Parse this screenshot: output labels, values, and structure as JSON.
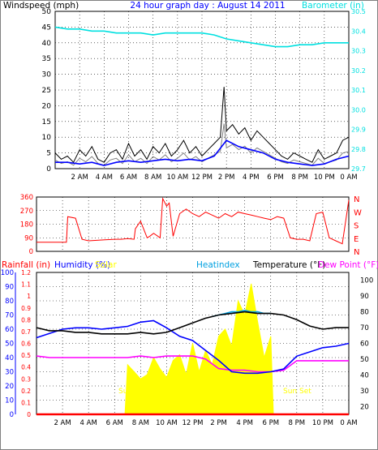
{
  "colors": {
    "frame": "#808080",
    "grid": "#000000",
    "wind": "#000000",
    "gust_gray": "#808080",
    "wind_avg": "#0000ff",
    "barometer": "#00e0e0",
    "direction": "#ff0000",
    "rain": "#ff0000",
    "humidity": "#0000ff",
    "solar": "#ffff00",
    "heatindex": "#00a0e0",
    "temperature": "#000000",
    "dewpoint": "#ff00ff",
    "dir_letters": "#ff0000"
  },
  "header": {
    "windspeed_label": "Windspeed (mph)",
    "title": "24 hour graph day : August 14 2011",
    "barometer_label": "Barometer (in)"
  },
  "footer": {
    "rainfall_label": "Rainfall (in)",
    "humidity_label": "Humidity (%)",
    "solar_label": "Solar",
    "heatindex_label": "Heatindex",
    "temperature_label": "Temperature (°F)",
    "dewpoint_label": "Dew Point (°F)",
    "sunrise_label": "Sun Rise",
    "sunset_label": "Sun Set"
  },
  "chart_data": [
    {
      "type": "line",
      "title": "24 hour graph day : August 14 2011",
      "x_tick_labels": [
        "2 AM",
        "4 AM",
        "6 AM",
        "8 AM",
        "10 AM",
        "12 PM",
        "2 PM",
        "4 PM",
        "6 PM",
        "8 PM",
        "10 PM",
        "0 AM"
      ],
      "x_range_hours": [
        0,
        24
      ],
      "y_left": {
        "label": "Windspeed (mph)",
        "range": [
          0,
          50
        ],
        "ticks": [
          "0",
          "5",
          "10",
          "15",
          "20",
          "25",
          "30",
          "35",
          "40",
          "45",
          "50"
        ]
      },
      "y_right": {
        "label": "Barometer (in)",
        "range": [
          29.7,
          30.5
        ],
        "ticks": [
          "29.7",
          "29.8",
          "29.9",
          "30.0",
          "30.1",
          "30.2",
          "30.3",
          "30.4",
          "30.5"
        ]
      },
      "grid": true,
      "series": [
        {
          "name": "Windspeed (mph)",
          "x": [
            0,
            0.5,
            1,
            1.5,
            2,
            2.5,
            3,
            3.5,
            4,
            4.5,
            5,
            5.5,
            6,
            6.5,
            7,
            7.5,
            8,
            8.5,
            9,
            9.5,
            10,
            10.5,
            11,
            11.5,
            12,
            12.5,
            13,
            13.5,
            13.8,
            14,
            14.5,
            15,
            15.5,
            16,
            16.5,
            17,
            17.5,
            18,
            18.5,
            19,
            19.5,
            20,
            20.5,
            21,
            21.5,
            22,
            22.5,
            23,
            23.5,
            24
          ],
          "values": [
            5,
            3,
            4,
            2,
            6,
            4,
            7,
            3,
            2,
            5,
            6,
            3,
            8,
            4,
            6,
            3,
            7,
            5,
            8,
            4,
            6,
            9,
            5,
            7,
            4,
            6,
            8,
            10,
            26,
            12,
            14,
            11,
            13,
            9,
            12,
            10,
            8,
            6,
            4,
            3,
            5,
            4,
            3,
            2,
            6,
            3,
            4,
            5,
            9,
            10
          ]
        },
        {
          "name": "Wind average",
          "x": [
            0,
            1,
            2,
            3,
            4,
            5,
            6,
            7,
            8,
            9,
            10,
            11,
            12,
            13,
            14,
            15,
            16,
            17,
            18,
            19,
            20,
            21,
            22,
            23,
            24
          ],
          "values": [
            2,
            2,
            1.5,
            2,
            1,
            2,
            2.5,
            2,
            2.5,
            3,
            2.5,
            3,
            2.5,
            4,
            9,
            7,
            6,
            5,
            3,
            2,
            1.5,
            1,
            1.5,
            3,
            4
          ]
        },
        {
          "name": "Barometer (in)",
          "x": [
            0,
            1,
            2,
            3,
            4,
            5,
            6,
            7,
            8,
            9,
            10,
            11,
            12,
            13,
            14,
            15,
            16,
            17,
            18,
            19,
            20,
            21,
            22,
            23,
            24
          ],
          "values": [
            30.42,
            30.41,
            30.41,
            30.4,
            30.4,
            30.39,
            30.39,
            30.39,
            30.38,
            30.39,
            30.39,
            30.39,
            30.39,
            30.38,
            30.36,
            30.35,
            30.34,
            30.33,
            30.32,
            30.32,
            30.33,
            30.33,
            30.34,
            30.34,
            30.34
          ]
        }
      ]
    },
    {
      "type": "line",
      "x_range_hours": [
        0,
        24
      ],
      "y_left": {
        "range": [
          0,
          360
        ],
        "ticks": [
          "0",
          "90",
          "180",
          "270",
          "360"
        ]
      },
      "y_right_letters": [
        "N",
        "W",
        "S",
        "E",
        "N"
      ],
      "grid": true,
      "series": [
        {
          "name": "Wind direction",
          "x": [
            0,
            1,
            2,
            2.3,
            2.4,
            3,
            3.5,
            4,
            5,
            6,
            6.5,
            7,
            7.5,
            7.6,
            8,
            8.5,
            8.7,
            9,
            9.5,
            9.7,
            10,
            10.2,
            10.5,
            11,
            11.5,
            12,
            12.5,
            13,
            13.5,
            14,
            14.5,
            15,
            15.5,
            16,
            16.5,
            17,
            17.5,
            18,
            18.5,
            19,
            19.5,
            20,
            20.5,
            21,
            21.5,
            22,
            22.5,
            23,
            23.5,
            24
          ],
          "values": [
            60,
            60,
            60,
            60,
            230,
            220,
            80,
            70,
            75,
            80,
            80,
            85,
            80,
            150,
            200,
            90,
            100,
            120,
            90,
            350,
            300,
            320,
            100,
            250,
            280,
            250,
            230,
            260,
            240,
            220,
            250,
            230,
            260,
            250,
            240,
            230,
            220,
            210,
            230,
            220,
            90,
            80,
            80,
            70,
            250,
            260,
            90,
            70,
            50,
            340
          ]
        }
      ]
    },
    {
      "type": "line",
      "x_range_hours": [
        0,
        24
      ],
      "y_left_rain": {
        "label": "Rainfall (in)",
        "range": [
          0,
          1.2
        ],
        "ticks": [
          "0",
          "0.1",
          "0.2",
          "0.3",
          "0.4",
          "0.5",
          "0.6",
          "0.7",
          "0.8",
          "0.9",
          "1",
          "1.1",
          "1.2"
        ]
      },
      "y_left_humidity": {
        "label": "Humidity (%)",
        "range": [
          0,
          100
        ],
        "ticks": [
          "0",
          "10",
          "20",
          "30",
          "40",
          "50",
          "60",
          "70",
          "80",
          "90",
          "100"
        ]
      },
      "y_right": {
        "label": "Temperature (°F)",
        "range": [
          15,
          105
        ],
        "ticks": [
          "20",
          "30",
          "40",
          "50",
          "60",
          "70",
          "80",
          "90",
          "100"
        ]
      },
      "grid": true,
      "series": [
        {
          "name": "Temperature (°F)",
          "x": [
            0,
            1,
            2,
            3,
            4,
            5,
            6,
            7,
            8,
            9,
            10,
            11,
            12,
            13,
            14,
            15,
            16,
            17,
            18,
            19,
            20,
            21,
            22,
            23,
            24
          ],
          "values": [
            70,
            68,
            68,
            67,
            67,
            66,
            66,
            66,
            67,
            66,
            67,
            70,
            73,
            76,
            78,
            79,
            80,
            79,
            79,
            78,
            75,
            71,
            69,
            70,
            70
          ]
        },
        {
          "name": "Humidity (%)",
          "x": [
            0,
            1,
            2,
            3,
            4,
            5,
            6,
            7,
            8,
            9,
            10,
            11,
            12,
            13,
            14,
            15,
            16,
            17,
            18,
            19,
            20,
            21,
            22,
            23,
            24
          ],
          "values": [
            54,
            57,
            60,
            61,
            61,
            60,
            61,
            62,
            65,
            66,
            61,
            55,
            52,
            45,
            38,
            30,
            29,
            29,
            30,
            32,
            41,
            44,
            47,
            48,
            50
          ]
        },
        {
          "name": "Dew Point (°F)",
          "x": [
            0,
            1,
            2,
            3,
            4,
            5,
            6,
            7,
            8,
            9,
            10,
            11,
            12,
            13,
            14,
            15,
            16,
            17,
            18,
            19,
            20,
            21,
            22,
            23,
            24
          ],
          "values": [
            52,
            51,
            51,
            51,
            51,
            51,
            51,
            51,
            52,
            51,
            52,
            52,
            52,
            50,
            44,
            43,
            43,
            42,
            42,
            43,
            49,
            49,
            49,
            49,
            49
          ]
        },
        {
          "name": "Solar",
          "x": [
            6.8,
            7,
            7.5,
            8,
            8.5,
            9,
            9.5,
            10,
            10.5,
            11,
            11.5,
            12,
            12.5,
            13,
            13.5,
            14,
            14.5,
            15,
            15.5,
            16,
            16.5,
            17,
            17.5,
            18,
            18.2
          ],
          "values": [
            0,
            35,
            30,
            25,
            28,
            40,
            32,
            26,
            38,
            42,
            28,
            50,
            30,
            45,
            35,
            55,
            60,
            48,
            80,
            70,
            92,
            65,
            40,
            55,
            0
          ]
        },
        {
          "name": "Heatindex",
          "x": [
            13.5,
            14,
            14.5,
            15,
            15.5,
            16,
            16.5,
            17,
            17.5,
            18
          ],
          "values": [
            77,
            78,
            79,
            80,
            80,
            81,
            80,
            80,
            79,
            79
          ]
        },
        {
          "name": "Rainfall (in)",
          "x": [
            0,
            24
          ],
          "values": [
            0,
            0
          ]
        }
      ]
    }
  ]
}
